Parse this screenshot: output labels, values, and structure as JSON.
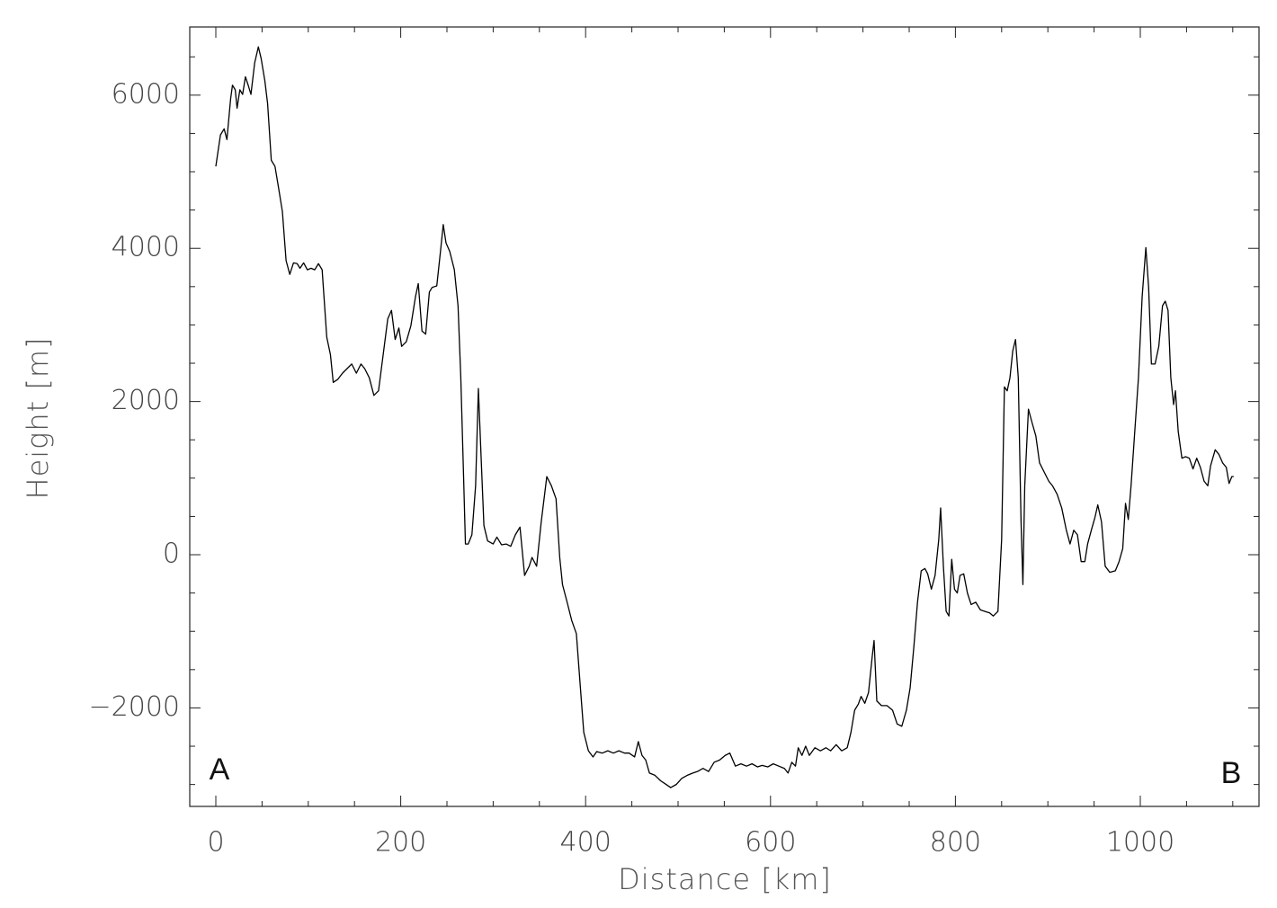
{
  "chart_data": {
    "type": "line",
    "xlabel": "Distance [km]",
    "ylabel": "Height [m]",
    "annotations": [
      {
        "text": "A"
      },
      {
        "text": "B"
      }
    ],
    "color": "#000000",
    "xlim": [
      -28.2,
      1128.4
    ],
    "ylim": [
      -3286,
      6890
    ],
    "xticks": [
      0,
      200,
      400,
      600,
      800,
      1000
    ],
    "yticks": [
      {
        "value": -2000,
        "label": "−2000"
      },
      0,
      2000,
      4000,
      6000
    ],
    "xminorticks": [
      50,
      100,
      150,
      250,
      300,
      350,
      450,
      500,
      550,
      650,
      700,
      750,
      850,
      900,
      950,
      1050,
      1100
    ],
    "yminorticks": [
      -3000,
      -2500,
      -1500,
      -1000,
      -500,
      500,
      1000,
      1500,
      2500,
      3000,
      3500,
      4500,
      5000,
      5500,
      6500
    ],
    "x": [
      0,
      5,
      9,
      12,
      16,
      18,
      21,
      23,
      26,
      29,
      32,
      35,
      38,
      42,
      46,
      49,
      53,
      56,
      60,
      64,
      68,
      72,
      76,
      80,
      84,
      88,
      91,
      95,
      99,
      103,
      107,
      111,
      115,
      120,
      124,
      127,
      132,
      137,
      142,
      147,
      152,
      157,
      161,
      166,
      171,
      176,
      181,
      186,
      190,
      194,
      198,
      201,
      206,
      211,
      216,
      219,
      223,
      227,
      231,
      234,
      239,
      243,
      246,
      249,
      253,
      258,
      262,
      265,
      268,
      270,
      273,
      277,
      281,
      284,
      287,
      290,
      294,
      300,
      304,
      309,
      314,
      319,
      324,
      329,
      334,
      339,
      342,
      347,
      352,
      358,
      363,
      368,
      372,
      375,
      380,
      385,
      390,
      394,
      398,
      403,
      408,
      412,
      418,
      424,
      430,
      436,
      442,
      447,
      453,
      457,
      461,
      465,
      469,
      475,
      481,
      486,
      492,
      498,
      504,
      510,
      516,
      521,
      527,
      533,
      539,
      545,
      551,
      556,
      562,
      568,
      574,
      580,
      586,
      591,
      597,
      603,
      609,
      615,
      619,
      623,
      627,
      630,
      634,
      638,
      642,
      648,
      654,
      660,
      665,
      671,
      677,
      683,
      687,
      691,
      695,
      698,
      702,
      706,
      710,
      712,
      715,
      720,
      726,
      732,
      737,
      742,
      747,
      751,
      755,
      759,
      763,
      767,
      770,
      774,
      778,
      782,
      784,
      787,
      790,
      793,
      796,
      799,
      802,
      805,
      809,
      813,
      817,
      822,
      827,
      832,
      837,
      841,
      846,
      850,
      853,
      856,
      859,
      862,
      865,
      868,
      871,
      873,
      875,
      879,
      883,
      887,
      891,
      896,
      901,
      905,
      910,
      915,
      920,
      924,
      928,
      932,
      936,
      940,
      943,
      947,
      951,
      954,
      958,
      962,
      967,
      973,
      977,
      981,
      984,
      987,
      990,
      994,
      998,
      1002,
      1006,
      1009,
      1012,
      1016,
      1020,
      1024,
      1027,
      1030,
      1033,
      1036,
      1038,
      1041,
      1045,
      1049,
      1053,
      1057,
      1061,
      1065,
      1069,
      1073,
      1076,
      1081,
      1085,
      1089,
      1093,
      1096,
      1099,
      1101
    ],
    "values": [
      5070,
      5480,
      5560,
      5420,
      5950,
      6130,
      6070,
      5830,
      6070,
      6010,
      6240,
      6130,
      6010,
      6420,
      6630,
      6480,
      6190,
      5890,
      5150,
      5070,
      4780,
      4480,
      3840,
      3660,
      3810,
      3800,
      3740,
      3810,
      3720,
      3740,
      3720,
      3800,
      3720,
      2840,
      2610,
      2250,
      2290,
      2370,
      2430,
      2490,
      2370,
      2490,
      2430,
      2310,
      2080,
      2140,
      2610,
      3080,
      3190,
      2810,
      2960,
      2720,
      2780,
      2990,
      3370,
      3540,
      2920,
      2880,
      3430,
      3490,
      3510,
      3960,
      4310,
      4070,
      3960,
      3720,
      3250,
      2310,
      1020,
      140,
      140,
      260,
      900,
      2170,
      1260,
      380,
      180,
      140,
      230,
      130,
      140,
      110,
      260,
      360,
      -270,
      -150,
      -35,
      -150,
      430,
      1020,
      900,
      730,
      -35,
      -390,
      -620,
      -860,
      -1030,
      -1680,
      -2320,
      -2560,
      -2640,
      -2570,
      -2590,
      -2560,
      -2590,
      -2560,
      -2590,
      -2590,
      -2640,
      -2440,
      -2620,
      -2680,
      -2850,
      -2880,
      -2950,
      -2990,
      -3040,
      -3000,
      -2920,
      -2880,
      -2850,
      -2830,
      -2790,
      -2830,
      -2710,
      -2680,
      -2620,
      -2590,
      -2760,
      -2730,
      -2760,
      -2730,
      -2770,
      -2750,
      -2770,
      -2730,
      -2760,
      -2790,
      -2850,
      -2710,
      -2760,
      -2520,
      -2620,
      -2500,
      -2620,
      -2520,
      -2560,
      -2520,
      -2560,
      -2480,
      -2560,
      -2520,
      -2320,
      -2030,
      -1950,
      -1850,
      -1940,
      -1800,
      -1330,
      -1120,
      -1910,
      -1970,
      -1970,
      -2030,
      -2210,
      -2240,
      -2030,
      -1740,
      -1210,
      -620,
      -210,
      -180,
      -250,
      -450,
      -270,
      200,
      610,
      -150,
      -740,
      -800,
      -60,
      -450,
      -500,
      -270,
      -250,
      -500,
      -650,
      -620,
      -720,
      -740,
      -760,
      -800,
      -740,
      200,
      2190,
      2140,
      2310,
      2660,
      2810,
      2310,
      430,
      -390,
      900,
      1900,
      1720,
      1550,
      1200,
      1080,
      960,
      900,
      790,
      610,
      320,
      140,
      320,
      260,
      -90,
      -90,
      140,
      320,
      490,
      650,
      430,
      -150,
      -230,
      -210,
      -90,
      80,
      670,
      460,
      900,
      1610,
      2310,
      3370,
      4010,
      3490,
      2490,
      2490,
      2720,
      3250,
      3310,
      3190,
      2310,
      1960,
      2140,
      1610,
      1260,
      1280,
      1260,
      1120,
      1260,
      1140,
      960,
      900,
      1160,
      1370,
      1310,
      1200,
      1140,
      930,
      1020,
      1020
    ]
  }
}
